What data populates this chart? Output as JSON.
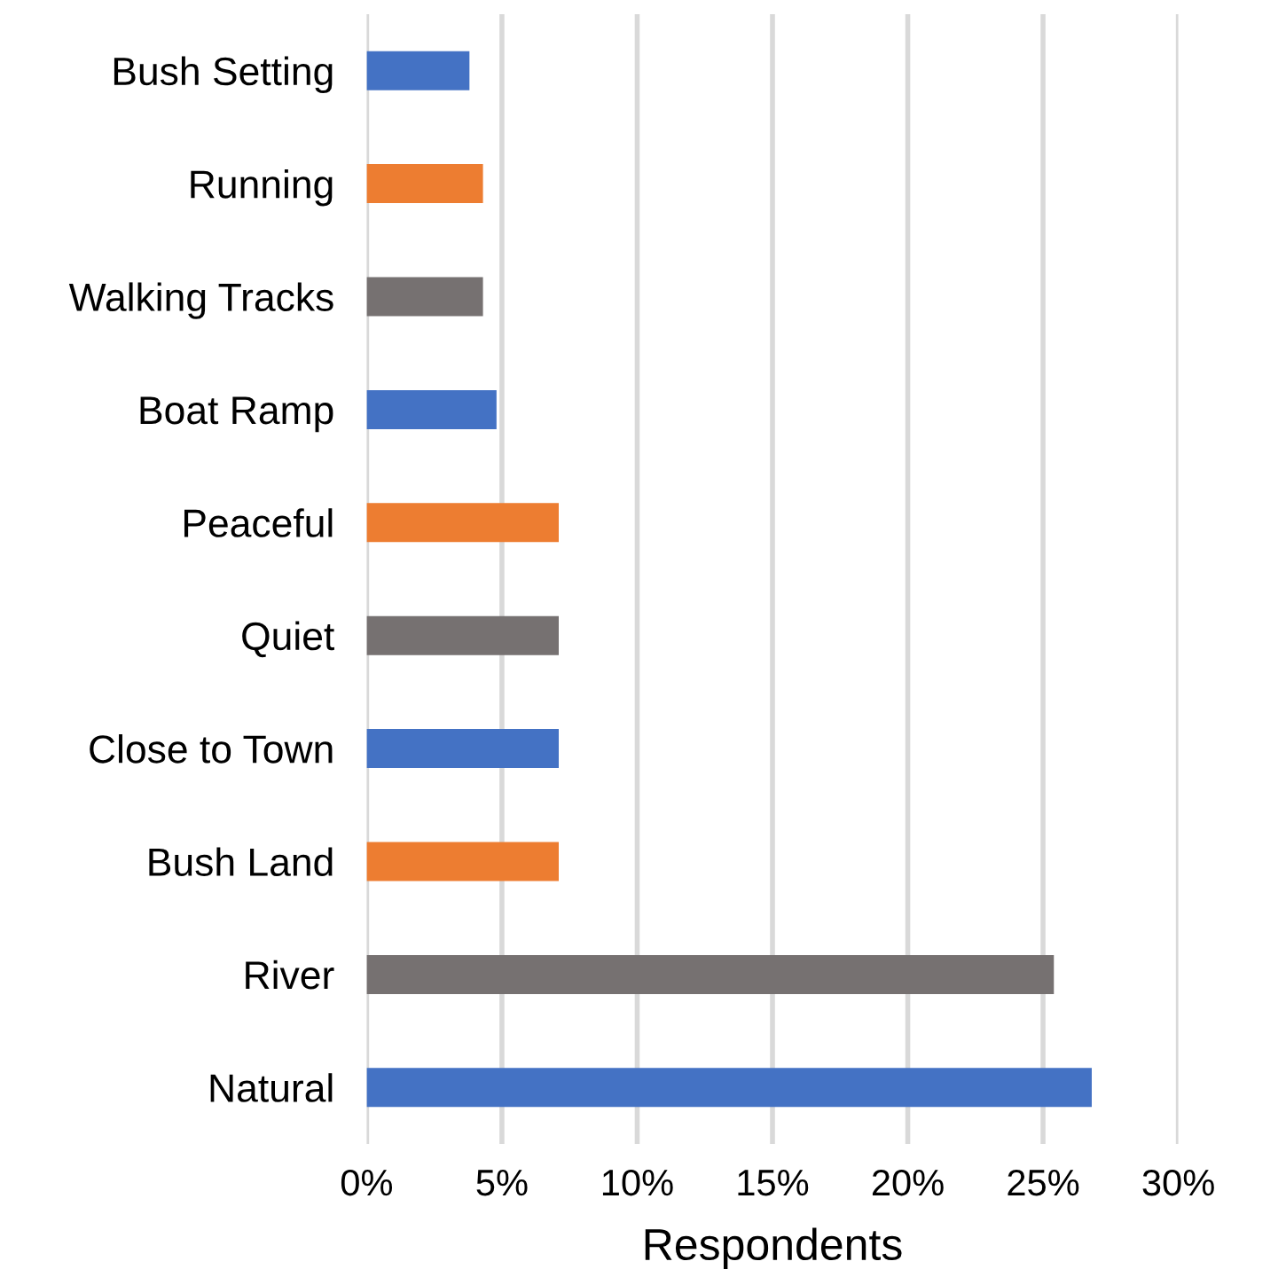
{
  "chart_data": {
    "type": "bar",
    "orientation": "horizontal",
    "xlabel": "Respondents",
    "categories": [
      "Bush Setting",
      "Running",
      "Walking Tracks",
      "Boat Ramp",
      "Peaceful",
      "Quiet",
      "Close to Town",
      "Bush Land",
      "River",
      "Natural"
    ],
    "values": [
      3.8,
      4.3,
      4.3,
      4.8,
      7.1,
      7.1,
      7.1,
      7.1,
      25.4,
      26.8
    ],
    "colors": [
      "#4472c4",
      "#ed7d31",
      "#767171",
      "#4472c4",
      "#ed7d31",
      "#767171",
      "#4472c4",
      "#ed7d31",
      "#767171",
      "#4472c4"
    ],
    "xlim": [
      0,
      30
    ],
    "xticks": [
      {
        "value": 0,
        "label": "0%"
      },
      {
        "value": 5,
        "label": "5%"
      },
      {
        "value": 10,
        "label": "10%"
      },
      {
        "value": 15,
        "label": "15%"
      },
      {
        "value": 20,
        "label": "20%"
      },
      {
        "value": 25,
        "label": "25%"
      },
      {
        "value": 30,
        "label": "30%"
      }
    ],
    "grid": "x",
    "legend": false
  }
}
